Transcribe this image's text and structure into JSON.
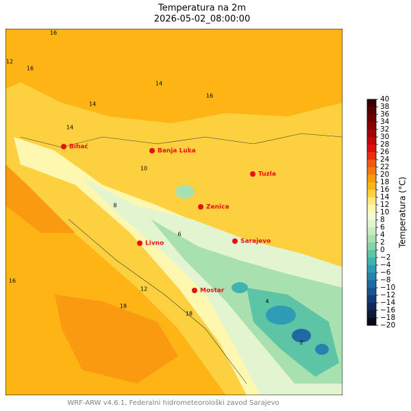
{
  "map": {
    "title": "Temperatura na 2m",
    "subtitle": "2026-05-02_08:00:00",
    "footer": "WRF-ARW v4.6.1, Federalni hidrometeorološki zavod Sarajevo",
    "cities": [
      "Bihać",
      "Banja Luka",
      "Tuzla",
      "Zenica",
      "Livno",
      "Sarajevo",
      "Mostar"
    ],
    "contour_labels": [
      "16",
      "16",
      "14",
      "14",
      "16",
      "12",
      "14",
      "10",
      "8",
      "6",
      "18",
      "18",
      "16",
      "12",
      "4",
      "2"
    ],
    "colorbar": {
      "label": "Temperatura (°C)",
      "ylim": [
        -20,
        40
      ],
      "yticks": [
        {
          "value": -20,
          "label": "−20"
        },
        {
          "value": -18,
          "label": "−18"
        },
        {
          "value": -16,
          "label": "−16"
        },
        {
          "value": -14,
          "label": "−14"
        },
        {
          "value": -12,
          "label": "−12"
        },
        {
          "value": -10,
          "label": "−10"
        },
        {
          "value": -8,
          "label": "−8"
        },
        {
          "value": -6,
          "label": "−6"
        },
        {
          "value": -4,
          "label": "−4"
        },
        {
          "value": -2,
          "label": "−2"
        },
        0,
        2,
        4,
        6,
        8,
        10,
        12,
        14,
        16,
        18,
        20,
        22,
        24,
        26,
        28,
        30,
        32,
        34,
        36,
        38,
        40
      ],
      "colors": [
        "#0a0a1e",
        "#0d1a3a",
        "#0f2a5a",
        "#123d7a",
        "#1a5391",
        "#1f6aa5",
        "#2683b0",
        "#2f9bb4",
        "#3fb3b0",
        "#5ec4a6",
        "#84d3a8",
        "#a8e0b0",
        "#c8ecc0",
        "#e2f5d0",
        "#f4fbd8",
        "#fdf7b0",
        "#fde980",
        "#fdd040",
        "#fdb515",
        "#f99a10",
        "#f47a10",
        "#ee5a10",
        "#e83010",
        "#dc1010",
        "#c00808",
        "#a00404",
        "#880202",
        "#700000",
        "#580000",
        "#3a0000"
      ]
    }
  }
}
